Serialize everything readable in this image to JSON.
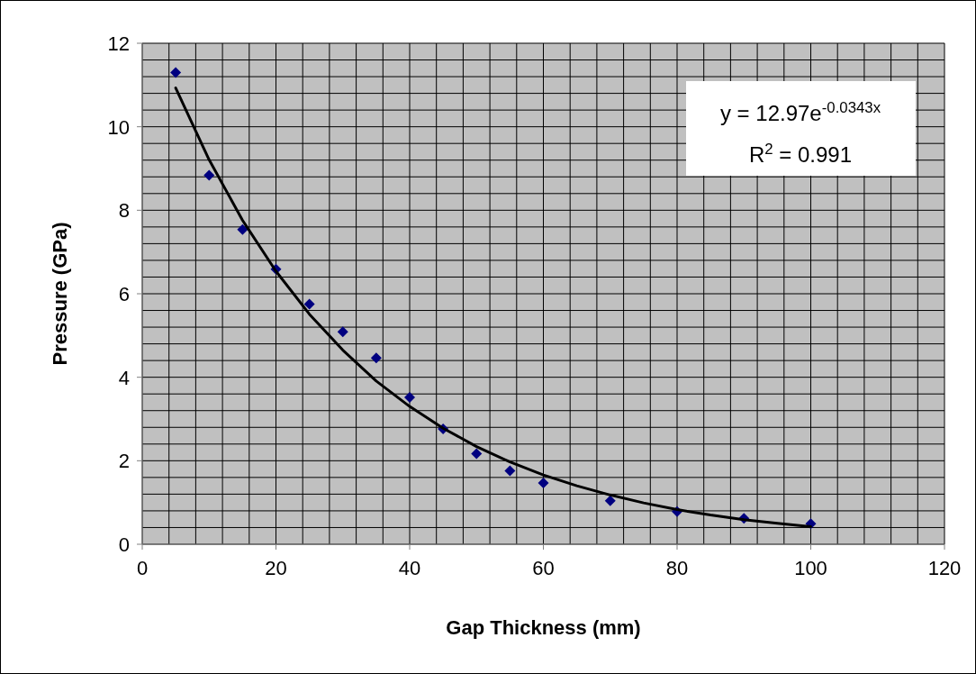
{
  "chart_data": {
    "type": "scatter",
    "xlabel": "Gap Thickness (mm)",
    "ylabel": "Pressure (GPa)",
    "xlim": [
      0,
      120
    ],
    "ylim": [
      0,
      12
    ],
    "xticks": [
      0,
      {
        "value": 4,
        "label": null
      },
      {
        "value": 8,
        "label": null
      },
      {
        "value": 12,
        "label": null
      },
      {
        "value": 16,
        "label": null
      },
      20,
      {
        "value": 24,
        "label": null
      },
      {
        "value": 28,
        "label": null
      },
      {
        "value": 32,
        "label": null
      },
      {
        "value": 36,
        "label": null
      },
      40,
      {
        "value": 44,
        "label": null
      },
      {
        "value": 48,
        "label": null
      },
      {
        "value": 52,
        "label": null
      },
      {
        "value": 56,
        "label": null
      },
      60,
      {
        "value": 64,
        "label": null
      },
      {
        "value": 68,
        "label": null
      },
      {
        "value": 72,
        "label": null
      },
      {
        "value": 76,
        "label": null
      },
      80,
      {
        "value": 84,
        "label": null
      },
      {
        "value": 88,
        "label": null
      },
      {
        "value": 92,
        "label": null
      },
      {
        "value": 96,
        "label": null
      },
      100,
      {
        "value": 104,
        "label": null
      },
      {
        "value": 108,
        "label": null
      },
      {
        "value": 112,
        "label": null
      },
      {
        "value": 116,
        "label": null
      },
      120
    ],
    "yticks": [
      0,
      {
        "value": 0.4,
        "label": null
      },
      {
        "value": 0.8,
        "label": null
      },
      {
        "value": 1.2,
        "label": null
      },
      {
        "value": 1.6,
        "label": null
      },
      2,
      {
        "value": 2.4,
        "label": null
      },
      {
        "value": 2.8,
        "label": null
      },
      {
        "value": 3.2,
        "label": null
      },
      {
        "value": 3.6,
        "label": null
      },
      4,
      {
        "value": 4.4,
        "label": null
      },
      {
        "value": 4.8,
        "label": null
      },
      {
        "value": 5.2,
        "label": null
      },
      {
        "value": 5.6,
        "label": null
      },
      6,
      {
        "value": 6.4,
        "label": null
      },
      {
        "value": 6.8,
        "label": null
      },
      {
        "value": 7.2,
        "label": null
      },
      {
        "value": 7.6,
        "label": null
      },
      8,
      {
        "value": 8.4,
        "label": null
      },
      {
        "value": 8.8,
        "label": null
      },
      {
        "value": 9.2,
        "label": null
      },
      {
        "value": 9.6,
        "label": null
      },
      10,
      {
        "value": 10.4,
        "label": null
      },
      {
        "value": 10.8,
        "label": null
      },
      {
        "value": 11.2,
        "label": null
      },
      {
        "value": 11.6,
        "label": null
      },
      12
    ],
    "grid": true,
    "marker": "diamond",
    "annotations": [
      "y = 12.97e$^{-0.0343x}$",
      "R$^{2}$ = 0.991"
    ],
    "series": [
      {
        "color": "#000080",
        "x": [
          5,
          10,
          15,
          20,
          25,
          30,
          35,
          40,
          45,
          50,
          55,
          60,
          70,
          80,
          90,
          100
        ],
        "values": [
          11.3,
          8.84,
          7.54,
          6.59,
          5.75,
          5.09,
          4.46,
          3.52,
          2.76,
          2.17,
          1.76,
          1.47,
          1.04,
          0.78,
          0.62,
          0.49
        ]
      },
      {
        "type": "line",
        "color": "#000000",
        "marker": "none",
        "line_style": "solid",
        "x": [
          5,
          10,
          15,
          20,
          25,
          30,
          35,
          40,
          45,
          50,
          55,
          60,
          65,
          70,
          75,
          80,
          85,
          90,
          95,
          100
        ],
        "values": [
          10.93,
          9.21,
          7.76,
          6.54,
          5.51,
          4.65,
          3.91,
          3.3,
          2.78,
          2.34,
          1.97,
          1.66,
          1.4,
          1.18,
          0.99,
          0.83,
          0.7,
          0.59,
          0.5,
          0.42
        ]
      }
    ]
  }
}
